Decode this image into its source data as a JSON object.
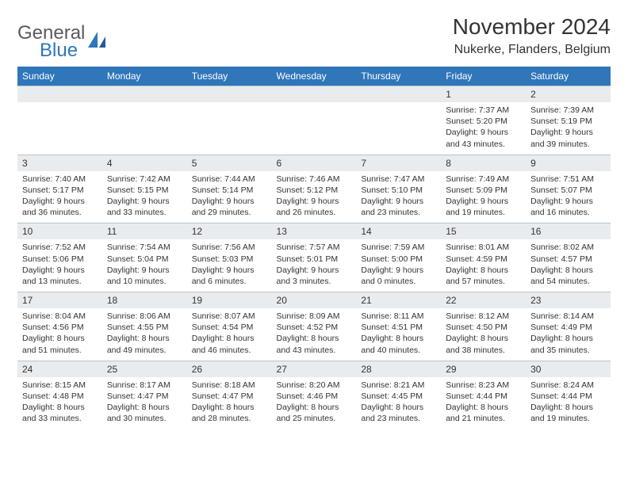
{
  "logo": {
    "word1": "General",
    "word2": "Blue"
  },
  "title": "November 2024",
  "subtitle": "Nukerke, Flanders, Belgium",
  "colors": {
    "header_bg": "#2f76ba",
    "header_text": "#ffffff",
    "daynum_bg": "#e9ecef",
    "page_bg": "#ffffff",
    "text": "#333333",
    "logo_gray": "#5a5a5a",
    "logo_blue": "#2f76ba"
  },
  "weekdays": [
    "Sunday",
    "Monday",
    "Tuesday",
    "Wednesday",
    "Thursday",
    "Friday",
    "Saturday"
  ],
  "weeks": [
    {
      "nums": [
        "",
        "",
        "",
        "",
        "",
        "1",
        "2"
      ],
      "details": [
        "",
        "",
        "",
        "",
        "",
        "Sunrise: 7:37 AM\nSunset: 5:20 PM\nDaylight: 9 hours and 43 minutes.",
        "Sunrise: 7:39 AM\nSunset: 5:19 PM\nDaylight: 9 hours and 39 minutes."
      ]
    },
    {
      "nums": [
        "3",
        "4",
        "5",
        "6",
        "7",
        "8",
        "9"
      ],
      "details": [
        "Sunrise: 7:40 AM\nSunset: 5:17 PM\nDaylight: 9 hours and 36 minutes.",
        "Sunrise: 7:42 AM\nSunset: 5:15 PM\nDaylight: 9 hours and 33 minutes.",
        "Sunrise: 7:44 AM\nSunset: 5:14 PM\nDaylight: 9 hours and 29 minutes.",
        "Sunrise: 7:46 AM\nSunset: 5:12 PM\nDaylight: 9 hours and 26 minutes.",
        "Sunrise: 7:47 AM\nSunset: 5:10 PM\nDaylight: 9 hours and 23 minutes.",
        "Sunrise: 7:49 AM\nSunset: 5:09 PM\nDaylight: 9 hours and 19 minutes.",
        "Sunrise: 7:51 AM\nSunset: 5:07 PM\nDaylight: 9 hours and 16 minutes."
      ]
    },
    {
      "nums": [
        "10",
        "11",
        "12",
        "13",
        "14",
        "15",
        "16"
      ],
      "details": [
        "Sunrise: 7:52 AM\nSunset: 5:06 PM\nDaylight: 9 hours and 13 minutes.",
        "Sunrise: 7:54 AM\nSunset: 5:04 PM\nDaylight: 9 hours and 10 minutes.",
        "Sunrise: 7:56 AM\nSunset: 5:03 PM\nDaylight: 9 hours and 6 minutes.",
        "Sunrise: 7:57 AM\nSunset: 5:01 PM\nDaylight: 9 hours and 3 minutes.",
        "Sunrise: 7:59 AM\nSunset: 5:00 PM\nDaylight: 9 hours and 0 minutes.",
        "Sunrise: 8:01 AM\nSunset: 4:59 PM\nDaylight: 8 hours and 57 minutes.",
        "Sunrise: 8:02 AM\nSunset: 4:57 PM\nDaylight: 8 hours and 54 minutes."
      ]
    },
    {
      "nums": [
        "17",
        "18",
        "19",
        "20",
        "21",
        "22",
        "23"
      ],
      "details": [
        "Sunrise: 8:04 AM\nSunset: 4:56 PM\nDaylight: 8 hours and 51 minutes.",
        "Sunrise: 8:06 AM\nSunset: 4:55 PM\nDaylight: 8 hours and 49 minutes.",
        "Sunrise: 8:07 AM\nSunset: 4:54 PM\nDaylight: 8 hours and 46 minutes.",
        "Sunrise: 8:09 AM\nSunset: 4:52 PM\nDaylight: 8 hours and 43 minutes.",
        "Sunrise: 8:11 AM\nSunset: 4:51 PM\nDaylight: 8 hours and 40 minutes.",
        "Sunrise: 8:12 AM\nSunset: 4:50 PM\nDaylight: 8 hours and 38 minutes.",
        "Sunrise: 8:14 AM\nSunset: 4:49 PM\nDaylight: 8 hours and 35 minutes."
      ]
    },
    {
      "nums": [
        "24",
        "25",
        "26",
        "27",
        "28",
        "29",
        "30"
      ],
      "details": [
        "Sunrise: 8:15 AM\nSunset: 4:48 PM\nDaylight: 8 hours and 33 minutes.",
        "Sunrise: 8:17 AM\nSunset: 4:47 PM\nDaylight: 8 hours and 30 minutes.",
        "Sunrise: 8:18 AM\nSunset: 4:47 PM\nDaylight: 8 hours and 28 minutes.",
        "Sunrise: 8:20 AM\nSunset: 4:46 PM\nDaylight: 8 hours and 25 minutes.",
        "Sunrise: 8:21 AM\nSunset: 4:45 PM\nDaylight: 8 hours and 23 minutes.",
        "Sunrise: 8:23 AM\nSunset: 4:44 PM\nDaylight: 8 hours and 21 minutes.",
        "Sunrise: 8:24 AM\nSunset: 4:44 PM\nDaylight: 8 hours and 19 minutes."
      ]
    }
  ]
}
